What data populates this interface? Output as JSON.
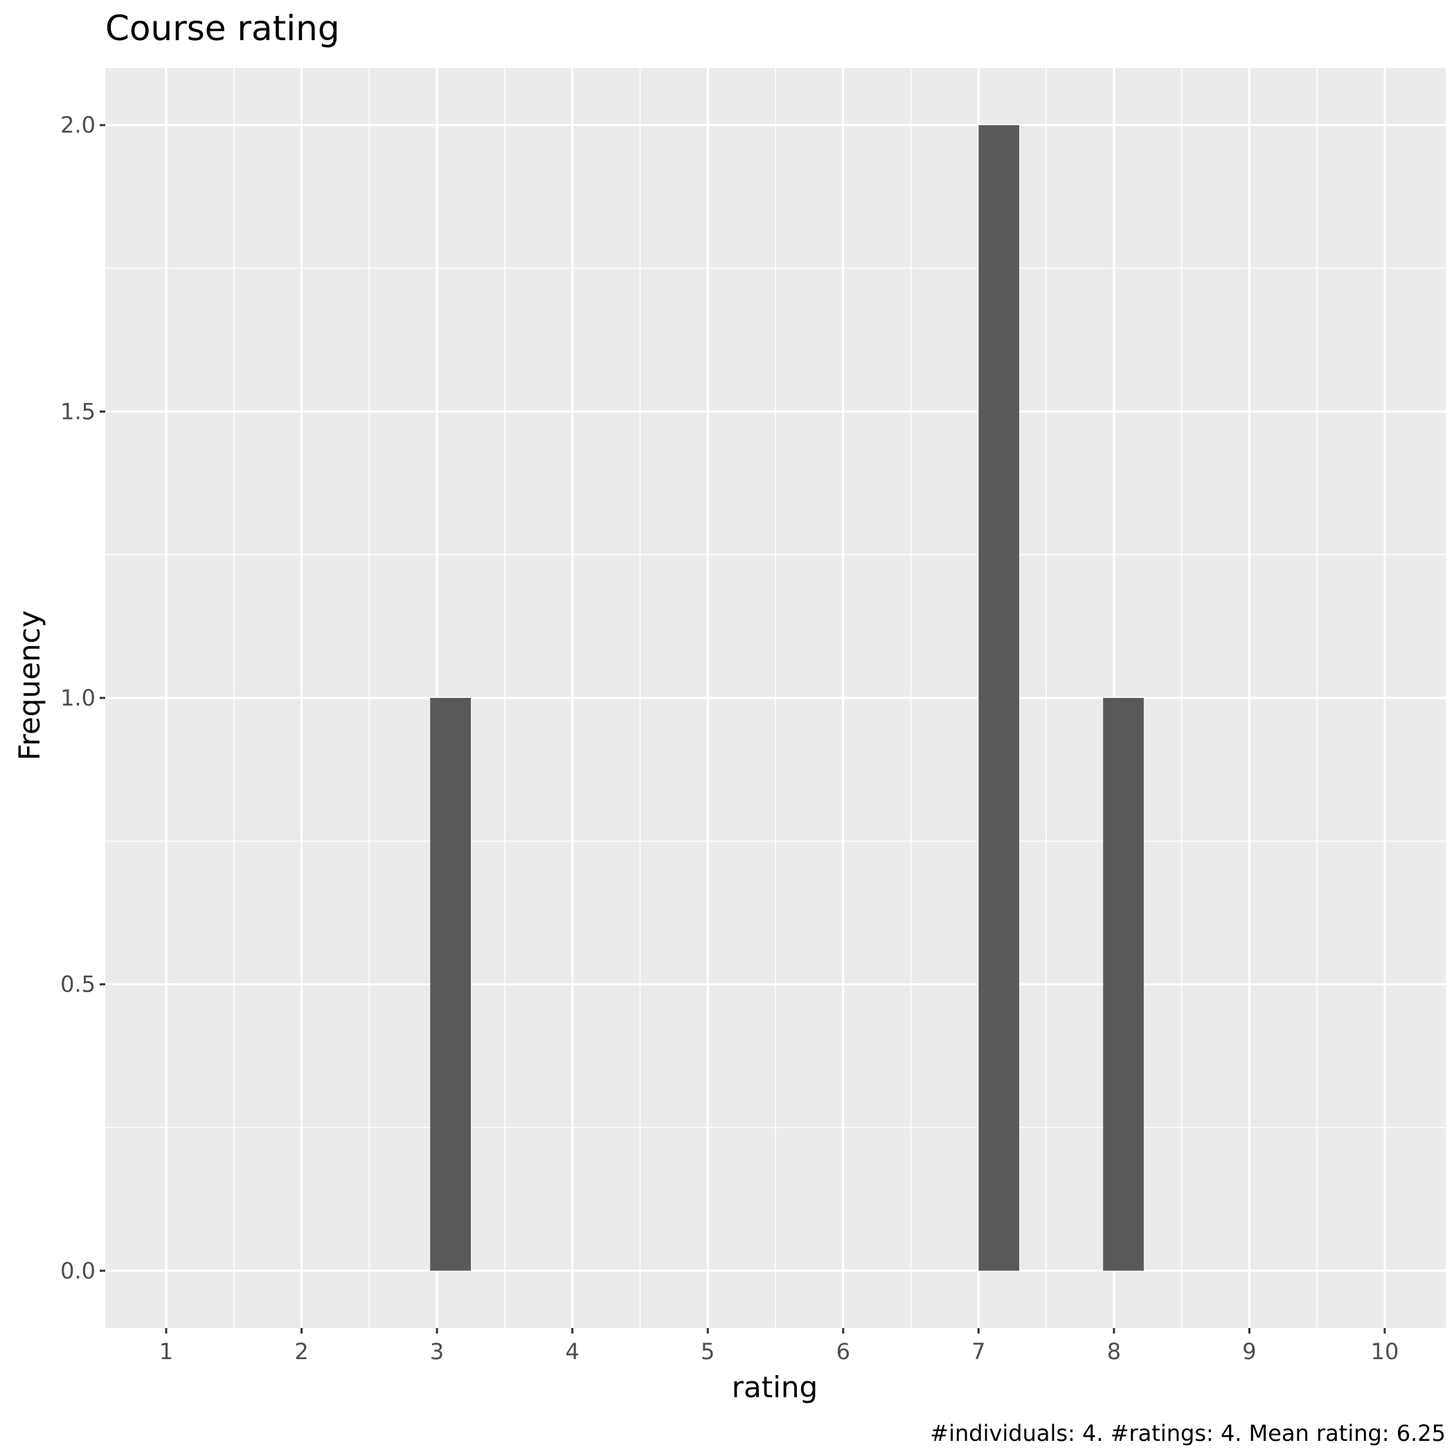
{
  "chart_data": {
    "type": "bar",
    "title": "Course rating",
    "xlabel": "rating",
    "ylabel": "Frequency",
    "caption": "#individuals: 4. #ratings: 4. Mean rating: 6.25",
    "x_ticks": [
      1,
      2,
      3,
      4,
      5,
      6,
      7,
      8,
      9,
      10
    ],
    "y_ticks": [
      "0.0",
      "0.5",
      "1.0",
      "1.5",
      "2.0"
    ],
    "xlim": [
      0.55,
      10.45
    ],
    "ylim": [
      -0.1,
      2.1
    ],
    "bar_width": 0.3,
    "bars": [
      {
        "x": 3.1,
        "count": 1
      },
      {
        "x": 7.15,
        "count": 2
      },
      {
        "x": 8.07,
        "count": 1
      }
    ],
    "colors": {
      "panel_background": "#ebebeb",
      "grid": "#ffffff",
      "bar_fill": "#595959",
      "tick_label": "#4d4d4d",
      "tick_mark": "#333333"
    },
    "grid": true,
    "legend": "none"
  }
}
